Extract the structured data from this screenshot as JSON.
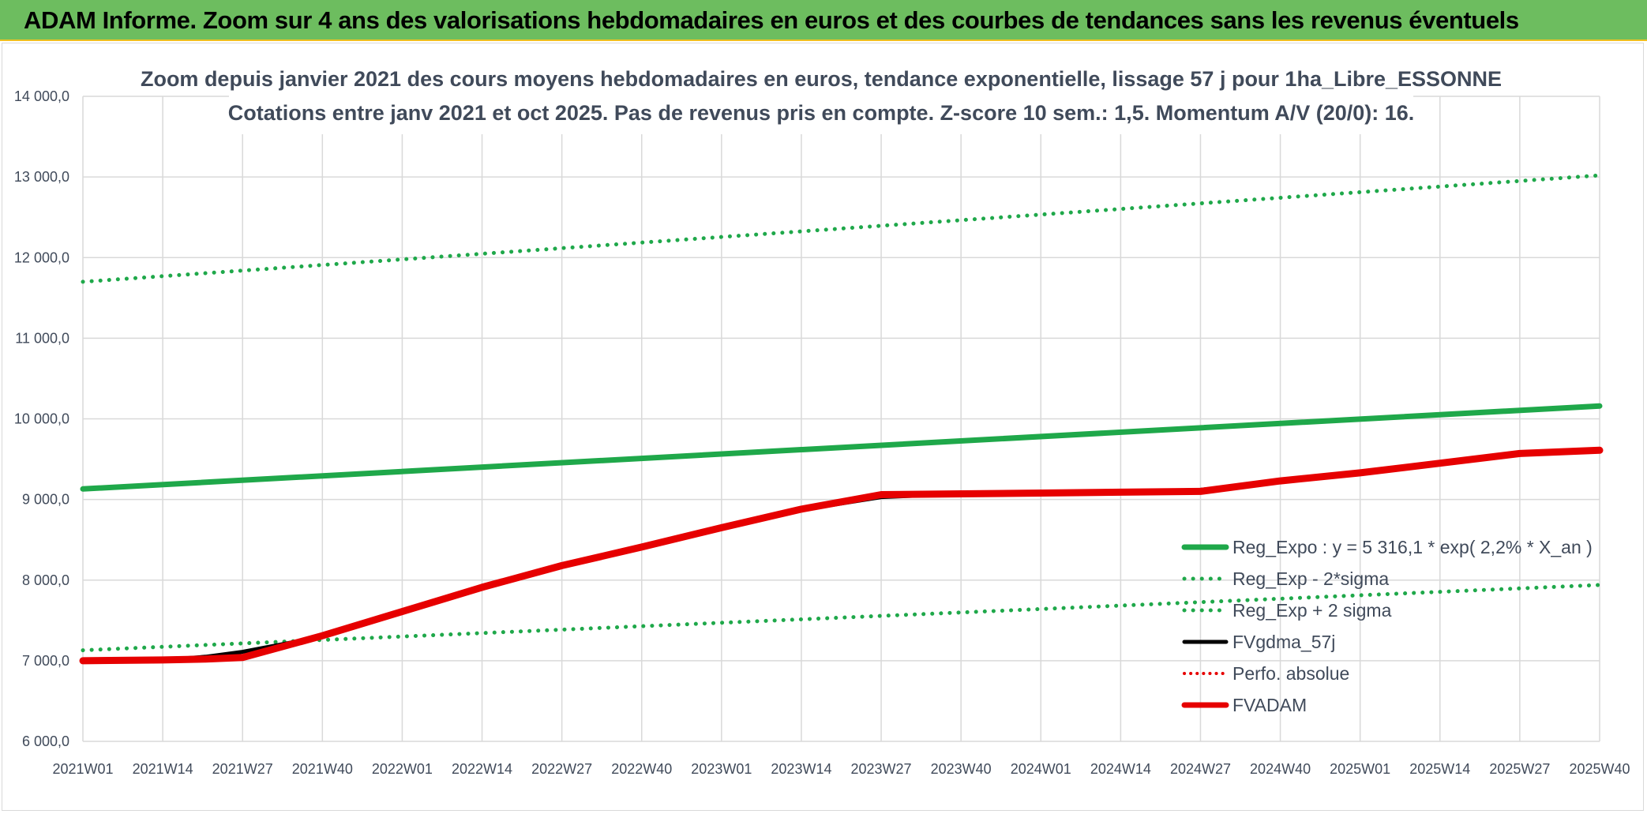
{
  "banner": {
    "title": "ADAM Informe. Zoom sur 4 ans des valorisations hebdomadaires en euros et des courbes de tendances sans les revenus éventuels"
  },
  "colors": {
    "banner_bg": "#6dbd5f",
    "green": "#1fa84a",
    "black": "#000000",
    "red": "#e60000",
    "grid": "#d9d9d9",
    "text": "#404a5a"
  },
  "chart_data": {
    "type": "line",
    "title": "Zoom depuis janvier 2021 des cours moyens hebdomadaires en euros, tendance exponentielle, lissage 57 j pour 1ha_Libre_ESSONNE",
    "subtitle": "Cotations entre janv 2021 et oct 2025. Pas de revenus pris en compte. Z-score 10 sem.: 1,5. Momentum A/V (20/0): 16.",
    "xlabel": "",
    "ylabel": "",
    "ylim": [
      6000,
      14000
    ],
    "yticks": [
      6000,
      7000,
      8000,
      9000,
      10000,
      11000,
      12000,
      13000,
      14000
    ],
    "ytick_labels": [
      "6 000,0",
      "7 000,0",
      "8 000,0",
      "9 000,0",
      "10 000,0",
      "11 000,0",
      "12 000,0",
      "13 000,0",
      "14 000,0"
    ],
    "x_range_weeks": [
      0,
      247
    ],
    "x_ticks": [
      0,
      13,
      26,
      39,
      52,
      65,
      78,
      91,
      104,
      117,
      130,
      143,
      156,
      169,
      182,
      195,
      208,
      221,
      234,
      247
    ],
    "x_tick_labels": [
      "2021W01",
      "2021W14",
      "2021W27",
      "2021W40",
      "2022W01",
      "2022W14",
      "2022W27",
      "2022W40",
      "2023W01",
      "2023W14",
      "2023W27",
      "2023W40",
      "2024W01",
      "2024W14",
      "2024W27",
      "2024W40",
      "2025W01",
      "2025W14",
      "2025W27",
      "2025W40"
    ],
    "grid": true,
    "legend_position": "right",
    "series": [
      {
        "name": "Reg_Expo : y = 5 316,1 * exp( 2,2% *  X_an )",
        "style": "solid-green",
        "x": [
          0,
          247
        ],
        "y": [
          9130,
          10160
        ]
      },
      {
        "name": "Reg_Exp - 2*sigma",
        "style": "dotted-green",
        "x": [
          0,
          247
        ],
        "y": [
          7130,
          7940
        ]
      },
      {
        "name": "Reg_Exp + 2 sigma",
        "style": "dotted-green",
        "x": [
          0,
          247
        ],
        "y": [
          11700,
          13020
        ]
      },
      {
        "name": "FVgdma_57j",
        "style": "solid-black",
        "x": [
          0,
          13,
          20,
          26,
          39,
          52,
          65,
          78,
          91,
          104,
          117,
          130,
          143,
          156,
          169,
          182,
          195,
          208,
          221,
          234,
          247
        ],
        "y": [
          7000,
          7010,
          7050,
          7110,
          7300,
          7600,
          7900,
          8170,
          8400,
          8640,
          8870,
          9030,
          9070,
          9080,
          9090,
          9120,
          9220,
          9330,
          9450,
          9560,
          9610
        ]
      },
      {
        "name": "Perfo. absolue",
        "style": "dotted-red",
        "x": [],
        "y": []
      },
      {
        "name": "FVADAM",
        "style": "solid-red",
        "x": [
          0,
          13,
          20,
          26,
          39,
          52,
          65,
          78,
          91,
          104,
          117,
          130,
          143,
          156,
          169,
          182,
          195,
          208,
          221,
          234,
          247
        ],
        "y": [
          7000,
          7010,
          7020,
          7040,
          7310,
          7610,
          7910,
          8180,
          8410,
          8650,
          8880,
          9060,
          9070,
          9080,
          9090,
          9100,
          9230,
          9330,
          9450,
          9570,
          9610
        ]
      }
    ]
  }
}
